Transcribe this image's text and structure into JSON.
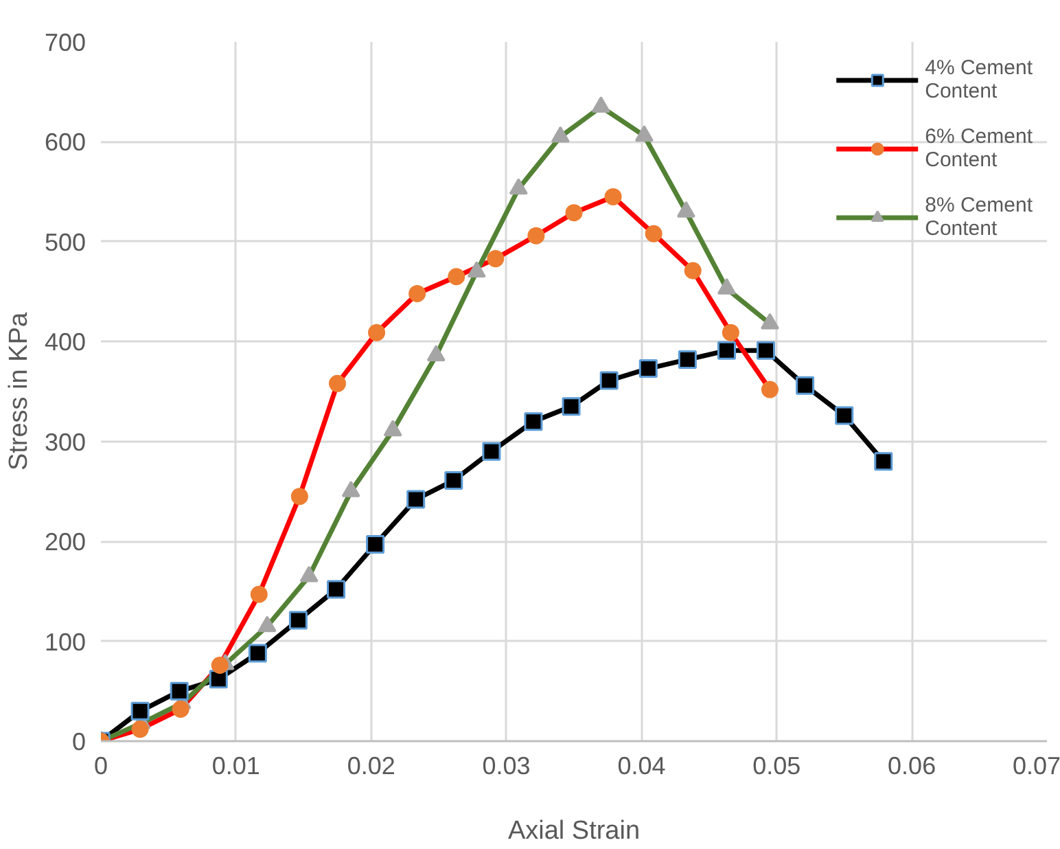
{
  "chart_data": {
    "type": "line",
    "xlabel": "Axial Strain",
    "ylabel": "Stress in KPa",
    "xlim": [
      0,
      0.07
    ],
    "ylim": [
      0,
      700
    ],
    "xticks": [
      0,
      0.01,
      0.02,
      0.03,
      0.04,
      0.05,
      0.06,
      0.07
    ],
    "yticks": [
      0,
      100,
      200,
      300,
      400,
      500,
      600,
      700
    ],
    "grid": true,
    "legend": "top right",
    "line_style": "solid",
    "series": [
      {
        "name": "4% Cement Content",
        "color": "#000000",
        "marker": "square",
        "x": [
          0,
          0.0029,
          0.0058,
          0.0087,
          0.0116,
          0.0146,
          0.0174,
          0.0203,
          0.0233,
          0.0261,
          0.0289,
          0.032,
          0.0348,
          0.0376,
          0.0405,
          0.0434,
          0.0463,
          0.0492,
          0.0521,
          0.055,
          0.0579
        ],
        "values": [
          0,
          30,
          50,
          62,
          88,
          121,
          152,
          197,
          242,
          261,
          290,
          320,
          335,
          361,
          373,
          382,
          391,
          391,
          356,
          326,
          280
        ]
      },
      {
        "name": "6% Cement Content",
        "color": "#ff0000",
        "marker": "circle",
        "x": [
          0,
          0.0029,
          0.0059,
          0.0088,
          0.0117,
          0.0147,
          0.0175,
          0.0204,
          0.0234,
          0.0263,
          0.0292,
          0.0322,
          0.035,
          0.0379,
          0.0409,
          0.0438,
          0.0466,
          0.0495
        ],
        "values": [
          0,
          12,
          32,
          76,
          147,
          245,
          358,
          409,
          448,
          465,
          483,
          506,
          529,
          545,
          508,
          471,
          409,
          352
        ]
      },
      {
        "name": "8% Cement Content",
        "color": "#548235",
        "marker": "triangle",
        "x": [
          0,
          0.003,
          0.006,
          0.0092,
          0.0123,
          0.0154,
          0.0185,
          0.0216,
          0.0248,
          0.0278,
          0.0309,
          0.034,
          0.037,
          0.0402,
          0.0433,
          0.0463,
          0.0495
        ],
        "values": [
          0,
          18,
          38,
          77,
          115,
          165,
          250,
          311,
          386,
          470,
          553,
          605,
          635,
          606,
          530,
          453,
          418
        ]
      }
    ]
  }
}
